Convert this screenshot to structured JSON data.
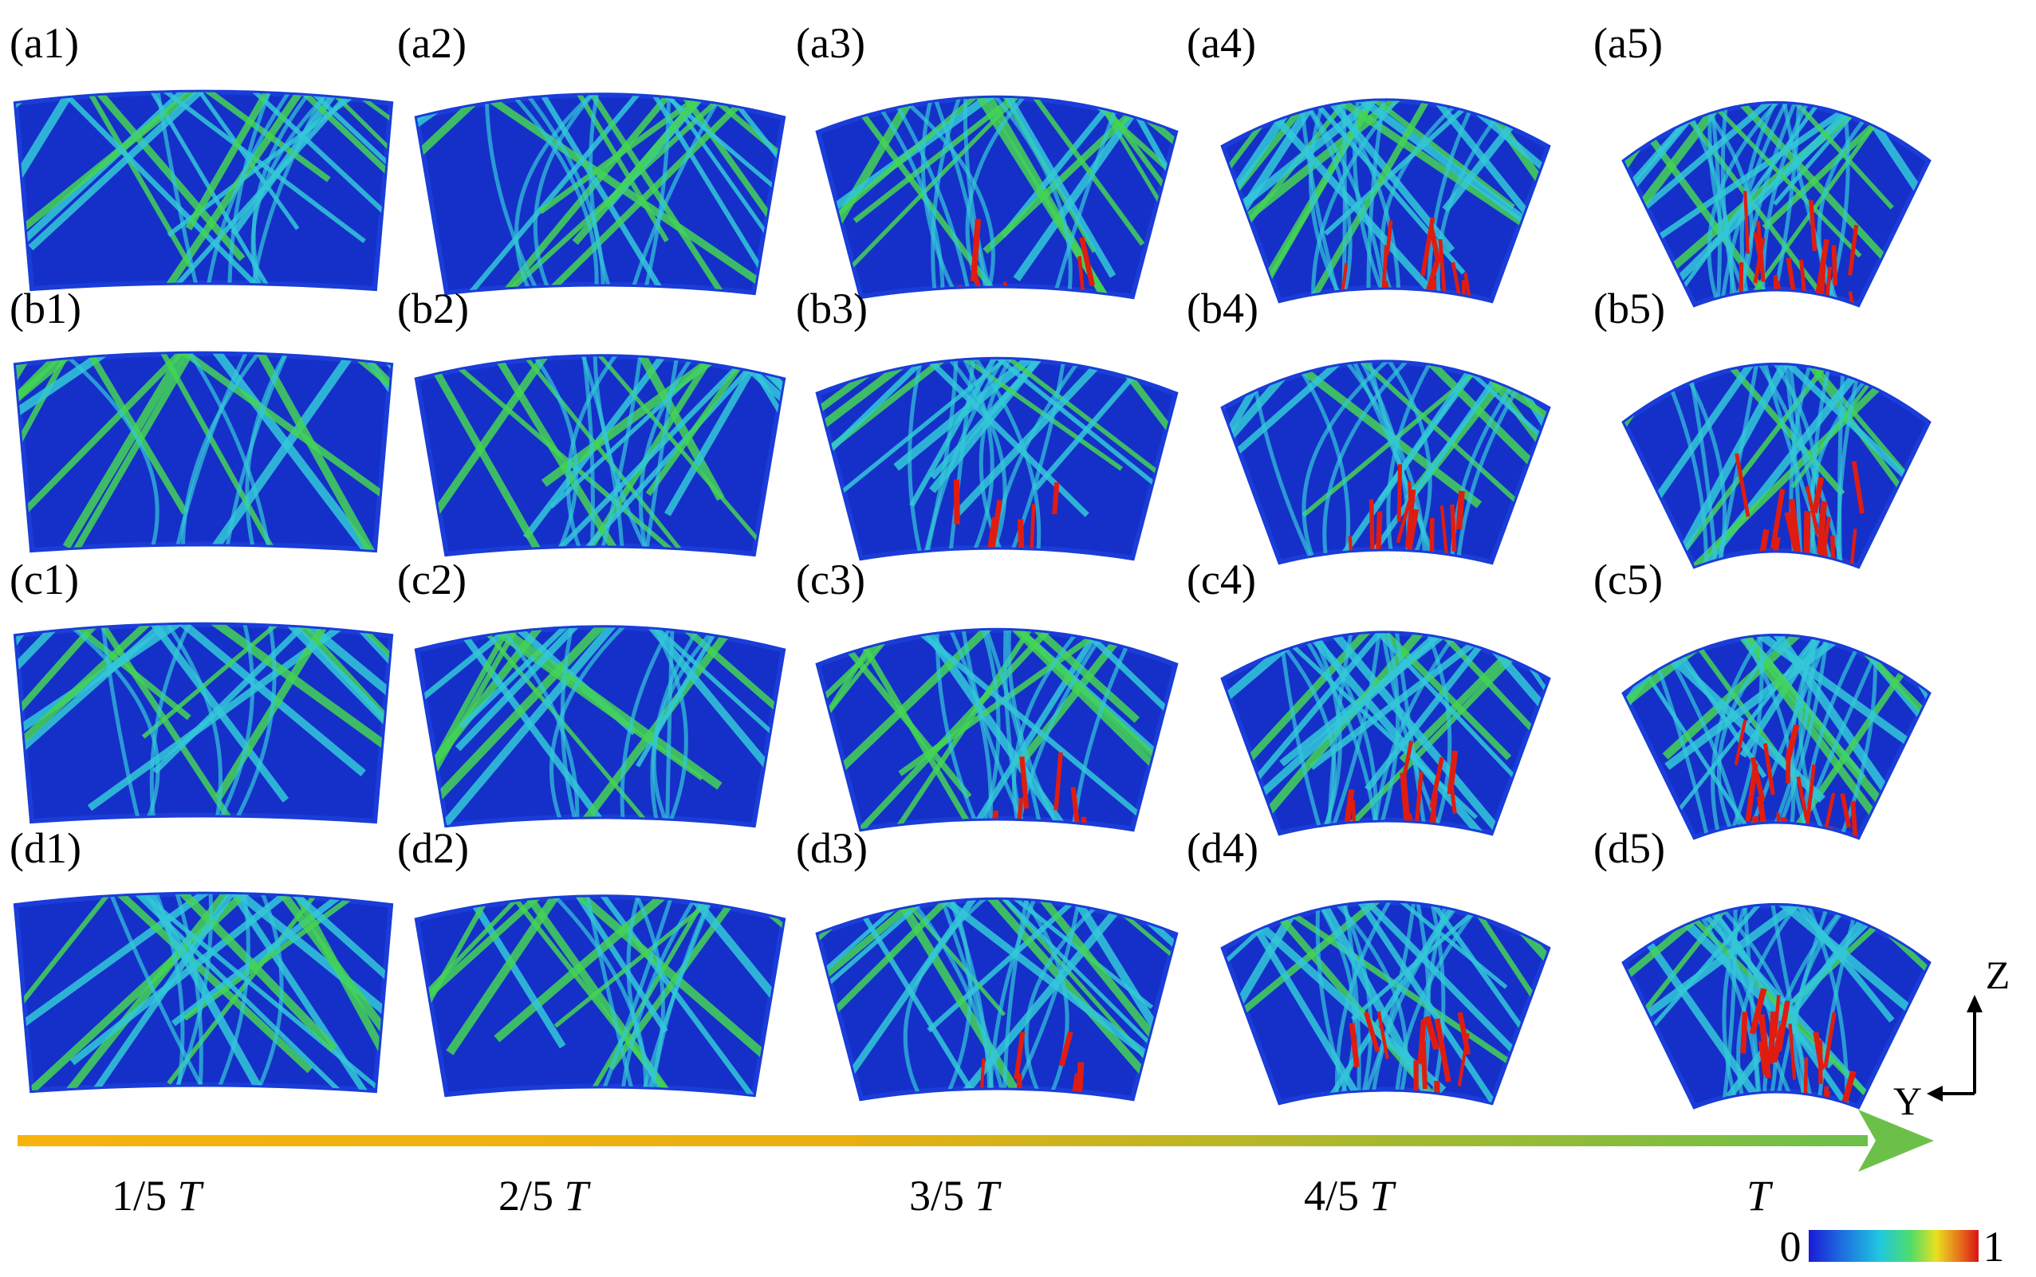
{
  "figure": {
    "rows": [
      {
        "row": "a",
        "panels": [
          "(a1)",
          "(a2)",
          "(a3)",
          "(a4)",
          "(a5)"
        ]
      },
      {
        "row": "b",
        "panels": [
          "(b1)",
          "(b2)",
          "(b3)",
          "(b4)",
          "(b5)"
        ]
      },
      {
        "row": "c",
        "panels": [
          "(c1)",
          "(c2)",
          "(c3)",
          "(c4)",
          "(c5)"
        ]
      },
      {
        "row": "d",
        "panels": [
          "(d1)",
          "(d2)",
          "(d3)",
          "(d4)",
          "(d5)"
        ]
      }
    ],
    "time_labels": [
      {
        "prefix": "1/5 ",
        "symbol": "T"
      },
      {
        "prefix": "2/5 ",
        "symbol": "T"
      },
      {
        "prefix": "3/5 ",
        "symbol": "T"
      },
      {
        "prefix": "4/5 ",
        "symbol": "T"
      },
      {
        "prefix": "",
        "symbol": "T"
      }
    ],
    "axes": {
      "vertical": "Z",
      "horizontal": "Y"
    },
    "colorbar": {
      "min_label": "0",
      "max_label": "1",
      "colors": [
        "#1a1ad6",
        "#1e6fe0",
        "#20c8e0",
        "#4fdc6a",
        "#e8e020",
        "#e8781c",
        "#d81414"
      ]
    },
    "arrow_colors": {
      "start": "#f7b30c",
      "end": "#6cc04a"
    },
    "field_colors": {
      "background": "#1530c8",
      "edge": "#1a3cd8",
      "band_cyan": "#33c8d8",
      "band_green": "#44d455",
      "hot_red": "#e01c10"
    }
  }
}
